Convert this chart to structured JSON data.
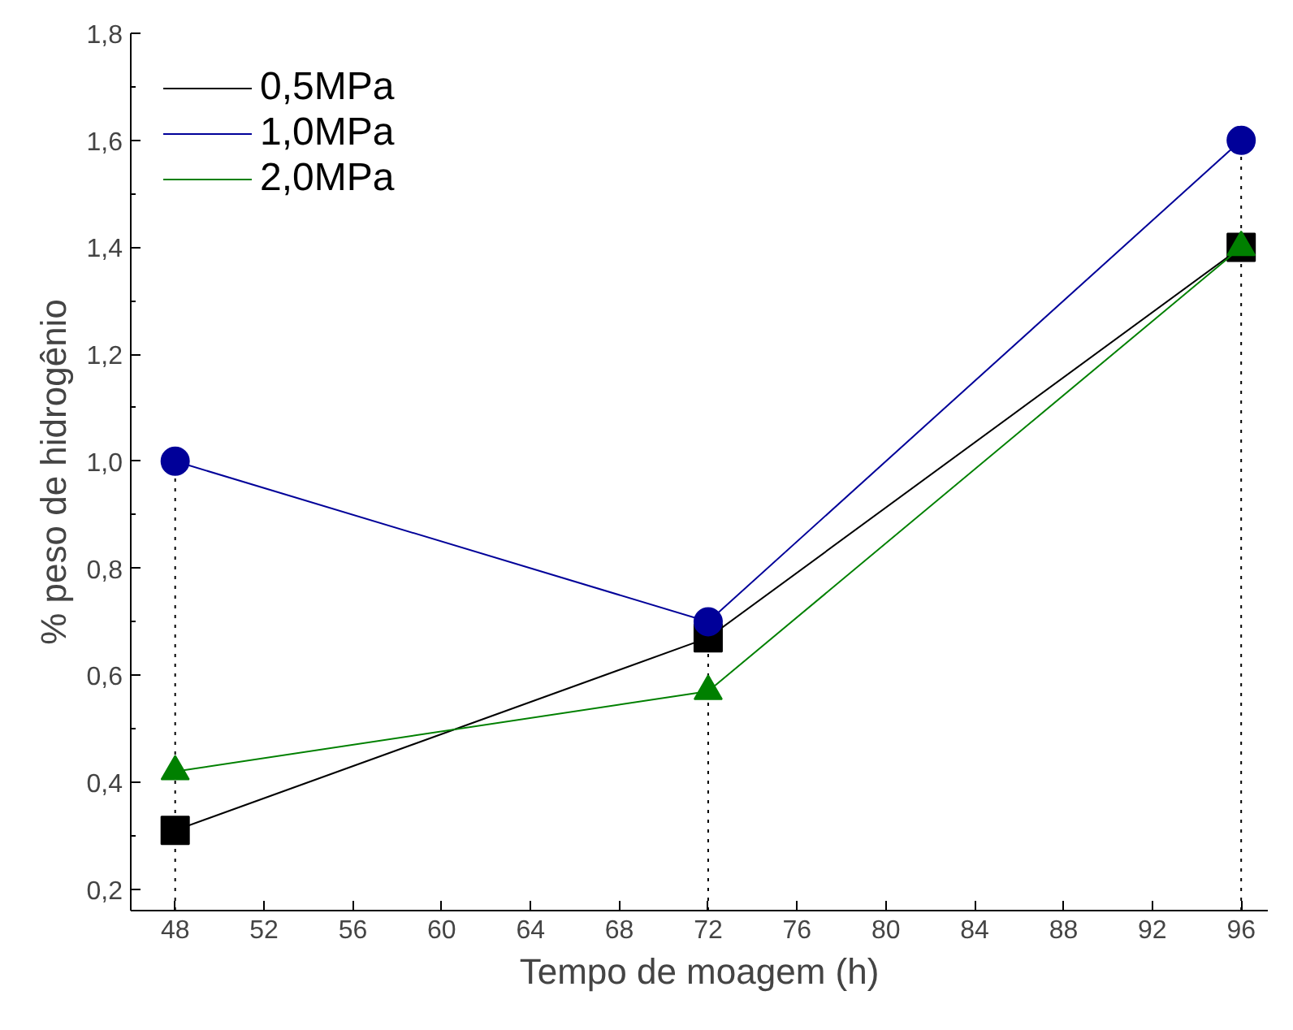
{
  "chart_data": {
    "type": "line",
    "xlabel": "Tempo de moagem (h)",
    "ylabel": "% peso de hidrogênio",
    "x": [
      48,
      72,
      96
    ],
    "series": [
      {
        "name": "0,5MPa",
        "color": "#000000",
        "marker": "square",
        "values": [
          0.31,
          0.67,
          1.4
        ]
      },
      {
        "name": "1,0MPa",
        "color": "#000099",
        "marker": "circle",
        "values": [
          1.0,
          0.7,
          1.6
        ]
      },
      {
        "name": "2,0MPa",
        "color": "#008000",
        "marker": "triangle",
        "values": [
          0.42,
          0.57,
          1.4
        ]
      }
    ],
    "xlim": [
      46,
      97.2
    ],
    "ylim": [
      0.16,
      1.8
    ],
    "xticks": [
      48,
      52,
      56,
      60,
      64,
      68,
      72,
      76,
      80,
      84,
      88,
      92,
      96
    ],
    "yticks": [
      {
        "value": 0.2,
        "label": "0,2"
      },
      {
        "value": 0.4,
        "label": "0,4"
      },
      {
        "value": 0.6,
        "label": "0,6"
      },
      {
        "value": 0.8,
        "label": "0,8"
      },
      {
        "value": 1.0,
        "label": "1,0"
      },
      {
        "value": 1.2,
        "label": "1,2"
      },
      {
        "value": 1.4,
        "label": "1,4"
      },
      {
        "value": 1.6,
        "label": "1,6"
      },
      {
        "value": 1.8,
        "label": "1,8"
      }
    ],
    "ref_lines": [
      {
        "axis": "x",
        "value": 48,
        "line_style": "dotted",
        "color": "#000000"
      },
      {
        "axis": "x",
        "value": 72,
        "line_style": "dotted",
        "color": "#000000"
      },
      {
        "axis": "x",
        "value": 96,
        "line_style": "dotted",
        "color": "#000000"
      }
    ],
    "grid": false,
    "legend": "top left",
    "line_style": "solid"
  }
}
